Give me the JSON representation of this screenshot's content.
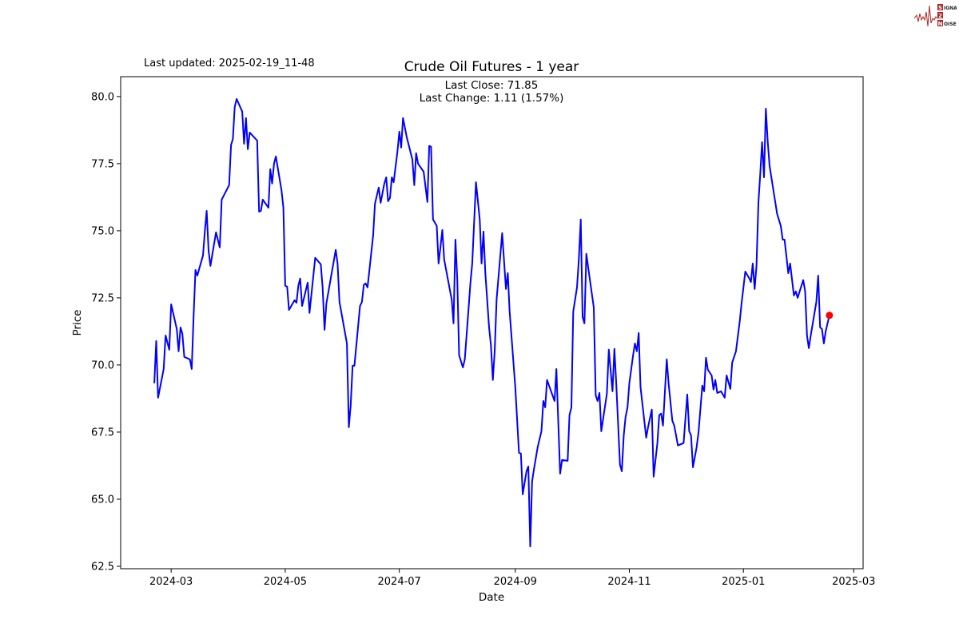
{
  "header": {
    "last_updated": "Last updated: 2025-02-19_11-48"
  },
  "logo": {
    "letters": [
      "S",
      "2",
      "N"
    ],
    "words": [
      "IGNAL",
      "",
      "OISE"
    ],
    "color": "#b22222"
  },
  "chart_data": {
    "type": "line",
    "title": "Crude Oil Futures - 1 year",
    "annotation": [
      "Last Close: 71.85",
      "Last Change: 1.11 (1.57%)"
    ],
    "xlabel": "Date",
    "ylabel": "Price",
    "xlim": [
      "2024-02-03",
      "2025-03-06"
    ],
    "ylim": [
      62.41,
      80.74
    ],
    "x_ticks": [
      "2024-03",
      "2024-05",
      "2024-07",
      "2024-09",
      "2024-11",
      "2025-01",
      "2025-03"
    ],
    "y_ticks": [
      "62.5",
      "65.0",
      "67.5",
      "70.0",
      "72.5",
      "75.0",
      "77.5",
      "80.0"
    ],
    "grid": false,
    "line_color": "#0000ff",
    "marker_color": "#ff0000",
    "last_point": [
      "2025-02-16",
      71.85
    ],
    "points": [
      [
        "2024-02-21",
        69.32
      ],
      [
        "2024-02-22",
        70.89
      ],
      [
        "2024-02-23",
        68.78
      ],
      [
        "2024-02-26",
        69.85
      ],
      [
        "2024-02-27",
        71.1
      ],
      [
        "2024-02-29",
        70.57
      ],
      [
        "2024-03-01",
        72.26
      ],
      [
        "2024-03-04",
        71.34
      ],
      [
        "2024-03-05",
        70.51
      ],
      [
        "2024-03-06",
        71.4
      ],
      [
        "2024-03-07",
        71.16
      ],
      [
        "2024-03-08",
        70.3
      ],
      [
        "2024-03-11",
        70.21
      ],
      [
        "2024-03-12",
        69.85
      ],
      [
        "2024-03-13",
        71.85
      ],
      [
        "2024-03-14",
        73.54
      ],
      [
        "2024-03-15",
        73.33
      ],
      [
        "2024-03-18",
        74.08
      ],
      [
        "2024-03-19",
        74.97
      ],
      [
        "2024-03-20",
        75.74
      ],
      [
        "2024-03-21",
        74.26
      ],
      [
        "2024-03-22",
        73.69
      ],
      [
        "2024-03-25",
        74.94
      ],
      [
        "2024-03-27",
        74.38
      ],
      [
        "2024-03-28",
        76.16
      ],
      [
        "2024-04-01",
        76.7
      ],
      [
        "2024-04-02",
        78.19
      ],
      [
        "2024-04-03",
        78.42
      ],
      [
        "2024-04-04",
        79.61
      ],
      [
        "2024-04-05",
        79.91
      ],
      [
        "2024-04-08",
        79.44
      ],
      [
        "2024-04-09",
        78.24
      ],
      [
        "2024-04-10",
        79.2
      ],
      [
        "2024-04-11",
        78.04
      ],
      [
        "2024-04-12",
        78.66
      ],
      [
        "2024-04-16",
        78.36
      ],
      [
        "2024-04-17",
        75.71
      ],
      [
        "2024-04-18",
        75.74
      ],
      [
        "2024-04-19",
        76.16
      ],
      [
        "2024-04-22",
        75.86
      ],
      [
        "2024-04-23",
        77.29
      ],
      [
        "2024-04-24",
        76.76
      ],
      [
        "2024-04-25",
        77.5
      ],
      [
        "2024-04-26",
        77.77
      ],
      [
        "2024-04-29",
        76.52
      ],
      [
        "2024-04-30",
        75.86
      ],
      [
        "2024-05-01",
        72.95
      ],
      [
        "2024-05-02",
        72.92
      ],
      [
        "2024-05-03",
        72.05
      ],
      [
        "2024-05-06",
        72.41
      ],
      [
        "2024-05-07",
        72.32
      ],
      [
        "2024-05-08",
        72.95
      ],
      [
        "2024-05-09",
        73.22
      ],
      [
        "2024-05-10",
        72.2
      ],
      [
        "2024-05-13",
        73.07
      ],
      [
        "2024-05-14",
        71.94
      ],
      [
        "2024-05-17",
        73.99
      ],
      [
        "2024-05-20",
        73.75
      ],
      [
        "2024-05-21",
        72.89
      ],
      [
        "2024-05-22",
        71.31
      ],
      [
        "2024-05-23",
        72.29
      ],
      [
        "2024-05-28",
        74.29
      ],
      [
        "2024-05-29",
        73.78
      ],
      [
        "2024-05-30",
        72.35
      ],
      [
        "2024-06-03",
        70.8
      ],
      [
        "2024-06-04",
        67.68
      ],
      [
        "2024-06-05",
        68.48
      ],
      [
        "2024-06-06",
        69.97
      ],
      [
        "2024-06-07",
        69.97
      ],
      [
        "2024-06-10",
        72.2
      ],
      [
        "2024-06-11",
        72.35
      ],
      [
        "2024-06-12",
        72.98
      ],
      [
        "2024-06-13",
        73.04
      ],
      [
        "2024-06-14",
        72.89
      ],
      [
        "2024-06-17",
        74.82
      ],
      [
        "2024-06-18",
        76.01
      ],
      [
        "2024-06-20",
        76.61
      ],
      [
        "2024-06-21",
        76.04
      ],
      [
        "2024-06-23",
        76.76
      ],
      [
        "2024-06-24",
        76.99
      ],
      [
        "2024-06-25",
        76.1
      ],
      [
        "2024-06-26",
        76.22
      ],
      [
        "2024-06-27",
        76.99
      ],
      [
        "2024-06-28",
        76.81
      ],
      [
        "2024-06-30",
        77.95
      ],
      [
        "2024-07-01",
        78.69
      ],
      [
        "2024-07-02",
        78.1
      ],
      [
        "2024-07-03",
        79.2
      ],
      [
        "2024-07-05",
        78.48
      ],
      [
        "2024-07-08",
        77.65
      ],
      [
        "2024-07-09",
        76.7
      ],
      [
        "2024-07-10",
        77.89
      ],
      [
        "2024-07-11",
        77.5
      ],
      [
        "2024-07-14",
        77.2
      ],
      [
        "2024-07-16",
        76.07
      ],
      [
        "2024-07-17",
        78.16
      ],
      [
        "2024-07-18",
        78.13
      ],
      [
        "2024-07-19",
        75.42
      ],
      [
        "2024-07-21",
        75.18
      ],
      [
        "2024-07-22",
        73.78
      ],
      [
        "2024-07-23",
        74.38
      ],
      [
        "2024-07-24",
        75.03
      ],
      [
        "2024-07-25",
        73.93
      ],
      [
        "2024-07-29",
        72.44
      ],
      [
        "2024-07-30",
        71.55
      ],
      [
        "2024-07-31",
        74.67
      ],
      [
        "2024-08-01",
        73.19
      ],
      [
        "2024-08-02",
        70.36
      ],
      [
        "2024-08-04",
        69.91
      ],
      [
        "2024-08-05",
        70.21
      ],
      [
        "2024-08-07",
        72.05
      ],
      [
        "2024-08-08",
        73.04
      ],
      [
        "2024-08-09",
        73.78
      ],
      [
        "2024-08-11",
        76.81
      ],
      [
        "2024-08-13",
        75.42
      ],
      [
        "2024-08-14",
        73.78
      ],
      [
        "2024-08-15",
        74.97
      ],
      [
        "2024-08-16",
        73.42
      ],
      [
        "2024-08-18",
        71.4
      ],
      [
        "2024-08-19",
        70.74
      ],
      [
        "2024-08-20",
        69.44
      ],
      [
        "2024-08-21",
        70.51
      ],
      [
        "2024-08-22",
        72.44
      ],
      [
        "2024-08-25",
        74.91
      ],
      [
        "2024-08-27",
        72.83
      ],
      [
        "2024-08-28",
        73.42
      ],
      [
        "2024-08-29",
        71.99
      ],
      [
        "2024-08-30",
        71.04
      ],
      [
        "2024-09-01",
        69.17
      ],
      [
        "2024-09-03",
        66.73
      ],
      [
        "2024-09-04",
        66.7
      ],
      [
        "2024-09-05",
        65.18
      ],
      [
        "2024-09-07",
        66.04
      ],
      [
        "2024-09-08",
        66.22
      ],
      [
        "2024-09-09",
        63.24
      ],
      [
        "2024-09-10",
        65.66
      ],
      [
        "2024-09-11",
        66.13
      ],
      [
        "2024-09-13",
        66.94
      ],
      [
        "2024-09-15",
        67.53
      ],
      [
        "2024-09-16",
        68.66
      ],
      [
        "2024-09-17",
        68.42
      ],
      [
        "2024-09-18",
        69.44
      ],
      [
        "2024-09-22",
        68.66
      ],
      [
        "2024-09-23",
        69.85
      ],
      [
        "2024-09-25",
        65.95
      ],
      [
        "2024-09-26",
        66.46
      ],
      [
        "2024-09-29",
        66.43
      ],
      [
        "2024-09-30",
        68.13
      ],
      [
        "2024-10-01",
        68.42
      ],
      [
        "2024-10-02",
        71.99
      ],
      [
        "2024-10-04",
        72.89
      ],
      [
        "2024-10-05",
        73.93
      ],
      [
        "2024-10-06",
        75.42
      ],
      [
        "2024-10-07",
        71.79
      ],
      [
        "2024-10-08",
        71.55
      ],
      [
        "2024-10-09",
        74.14
      ],
      [
        "2024-10-10",
        73.63
      ],
      [
        "2024-10-13",
        72.14
      ],
      [
        "2024-10-14",
        68.87
      ],
      [
        "2024-10-15",
        68.66
      ],
      [
        "2024-10-16",
        68.96
      ],
      [
        "2024-10-17",
        67.53
      ],
      [
        "2024-10-20",
        68.93
      ],
      [
        "2024-10-21",
        70.57
      ],
      [
        "2024-10-23",
        69.02
      ],
      [
        "2024-10-24",
        70.6
      ],
      [
        "2024-10-25",
        69.32
      ],
      [
        "2024-10-27",
        66.28
      ],
      [
        "2024-10-28",
        66.04
      ],
      [
        "2024-10-29",
        67.38
      ],
      [
        "2024-10-30",
        68.07
      ],
      [
        "2024-10-31",
        68.42
      ],
      [
        "2024-11-01",
        69.32
      ],
      [
        "2024-11-03",
        70.36
      ],
      [
        "2024-11-04",
        70.8
      ],
      [
        "2024-11-05",
        70.51
      ],
      [
        "2024-11-06",
        71.19
      ],
      [
        "2024-11-07",
        69.17
      ],
      [
        "2024-11-10",
        67.29
      ],
      [
        "2024-11-11",
        67.68
      ],
      [
        "2024-11-13",
        68.34
      ],
      [
        "2024-11-14",
        65.84
      ],
      [
        "2024-11-16",
        67.09
      ],
      [
        "2024-11-17",
        68.13
      ],
      [
        "2024-11-18",
        68.19
      ],
      [
        "2024-11-19",
        67.74
      ],
      [
        "2024-11-21",
        70.21
      ],
      [
        "2024-11-22",
        69.32
      ],
      [
        "2024-11-24",
        67.92
      ],
      [
        "2024-11-25",
        67.74
      ],
      [
        "2024-11-27",
        67.0
      ],
      [
        "2024-11-30",
        67.09
      ],
      [
        "2024-12-01",
        68.01
      ],
      [
        "2024-12-02",
        68.9
      ],
      [
        "2024-12-03",
        67.53
      ],
      [
        "2024-12-04",
        67.38
      ],
      [
        "2024-12-05",
        66.19
      ],
      [
        "2024-12-07",
        66.94
      ],
      [
        "2024-12-08",
        67.5
      ],
      [
        "2024-12-10",
        69.23
      ],
      [
        "2024-12-11",
        69.02
      ],
      [
        "2024-12-12",
        70.27
      ],
      [
        "2024-12-13",
        69.82
      ],
      [
        "2024-12-15",
        69.61
      ],
      [
        "2024-12-16",
        69.08
      ],
      [
        "2024-12-17",
        69.44
      ],
      [
        "2024-12-18",
        68.96
      ],
      [
        "2024-12-20",
        69.02
      ],
      [
        "2024-12-22",
        68.78
      ],
      [
        "2024-12-23",
        69.61
      ],
      [
        "2024-12-25",
        69.11
      ],
      [
        "2024-12-26",
        70.09
      ],
      [
        "2024-12-28",
        70.51
      ],
      [
        "2024-12-30",
        71.61
      ],
      [
        "2024-12-31",
        72.29
      ],
      [
        "2025-01-02",
        73.48
      ],
      [
        "2025-01-04",
        73.24
      ],
      [
        "2025-01-05",
        73.09
      ],
      [
        "2025-01-06",
        73.78
      ],
      [
        "2025-01-07",
        72.83
      ],
      [
        "2025-01-08",
        73.69
      ],
      [
        "2025-01-09",
        76.04
      ],
      [
        "2025-01-10",
        77.11
      ],
      [
        "2025-01-11",
        78.3
      ],
      [
        "2025-01-12",
        76.99
      ],
      [
        "2025-01-13",
        79.55
      ],
      [
        "2025-01-14",
        78.3
      ],
      [
        "2025-01-15",
        77.41
      ],
      [
        "2025-01-19",
        75.63
      ],
      [
        "2025-01-21",
        75.18
      ],
      [
        "2025-01-22",
        74.67
      ],
      [
        "2025-01-23",
        74.67
      ],
      [
        "2025-01-25",
        73.42
      ],
      [
        "2025-01-26",
        73.78
      ],
      [
        "2025-01-28",
        72.59
      ],
      [
        "2025-01-29",
        72.74
      ],
      [
        "2025-01-30",
        72.5
      ],
      [
        "2025-02-01",
        72.95
      ],
      [
        "2025-02-02",
        73.16
      ],
      [
        "2025-02-03",
        72.74
      ],
      [
        "2025-02-04",
        71.1
      ],
      [
        "2025-02-05",
        70.63
      ],
      [
        "2025-02-06",
        71.1
      ],
      [
        "2025-02-09",
        72.35
      ],
      [
        "2025-02-10",
        73.33
      ],
      [
        "2025-02-11",
        71.4
      ],
      [
        "2025-02-12",
        71.34
      ],
      [
        "2025-02-13",
        70.8
      ],
      [
        "2025-02-14",
        71.25
      ],
      [
        "2025-02-15",
        71.55
      ],
      [
        "2025-02-16",
        71.85
      ]
    ]
  }
}
